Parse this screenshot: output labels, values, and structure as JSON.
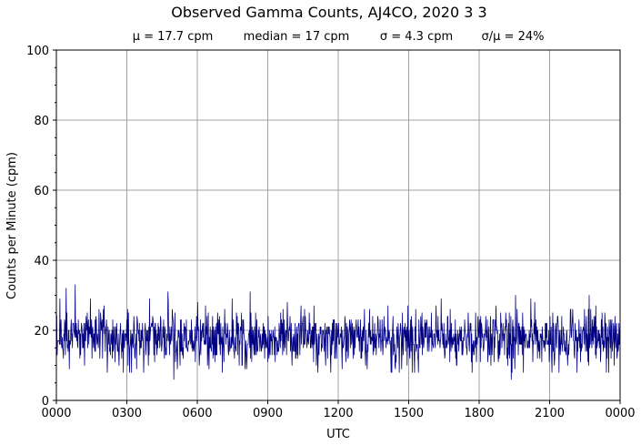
{
  "chart_data": {
    "type": "line",
    "title": "Observed Gamma Counts, AJ4CO, 2020 3 3",
    "stats": [
      "μ = 17.7 cpm",
      "median = 17 cpm",
      "σ = 4.3 cpm",
      "σ/μ = 24%"
    ],
    "xlabel": "UTC",
    "ylabel": "Counts per Minute (cpm)",
    "xlim": [
      0,
      1440
    ],
    "ylim": [
      0,
      100
    ],
    "x_ticks": [
      {
        "value": 0,
        "label": "0000"
      },
      {
        "value": 180,
        "label": "0300"
      },
      {
        "value": 360,
        "label": "0600"
      },
      {
        "value": 540,
        "label": "0900"
      },
      {
        "value": 720,
        "label": "1200"
      },
      {
        "value": 900,
        "label": "1500"
      },
      {
        "value": 1080,
        "label": "1800"
      },
      {
        "value": 1260,
        "label": "2100"
      },
      {
        "value": 1440,
        "label": "0000"
      }
    ],
    "y_ticks": [
      {
        "value": 0,
        "label": "0"
      },
      {
        "value": 20,
        "label": "20"
      },
      {
        "value": 40,
        "label": "40"
      },
      {
        "value": 60,
        "label": "60"
      },
      {
        "value": 80,
        "label": "80"
      },
      {
        "value": 100,
        "label": "100"
      }
    ],
    "grid": true,
    "series": [
      {
        "color": "#000080",
        "mean": 17.7,
        "sigma": 4.3,
        "min": 6,
        "max": 33,
        "sampling_minutes": 1,
        "notable_points": [
          {
            "x": 25,
            "y": 32
          },
          {
            "x": 48,
            "y": 33
          },
          {
            "x": 285,
            "y": 31
          },
          {
            "x": 495,
            "y": 31
          },
          {
            "x": 1173,
            "y": 30
          },
          {
            "x": 1222,
            "y": 28
          },
          {
            "x": 1361,
            "y": 30
          },
          {
            "x": 300,
            "y": 6
          },
          {
            "x": 1162,
            "y": 6
          }
        ]
      }
    ]
  }
}
